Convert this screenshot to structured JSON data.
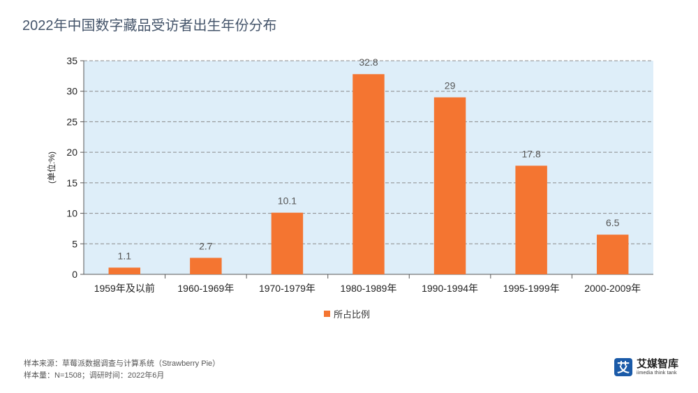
{
  "title": "2022年中国数字藏品受访者出生年份分布",
  "chart_data": {
    "type": "bar",
    "categories": [
      "1959年及以前",
      "1960-1969年",
      "1970-1979年",
      "1980-1989年",
      "1990-1994年",
      "1995-1999年",
      "2000-2009年"
    ],
    "series": [
      {
        "name": "所占比例",
        "values": [
          1.1,
          2.7,
          10.1,
          32.8,
          29,
          17.8,
          6.5
        ]
      }
    ],
    "ylabel": "(单位:%)",
    "ylim": [
      0,
      35
    ],
    "yticks": [
      0,
      5,
      10,
      15,
      20,
      25,
      30,
      35
    ],
    "grid": true,
    "legend": "bottom",
    "bar_color": "#f47531",
    "plot_background": "#deeef9"
  },
  "footer": {
    "source": "样本来源：草莓派数据调查与计算系统（Strawberry Pie）",
    "sample": "样本量：N=1508；调研时间：2022年6月"
  },
  "logo": {
    "mark": "艾",
    "name": "艾媒智库",
    "subtitle": "iimedia think tank",
    "color": "#1a5aa8"
  }
}
